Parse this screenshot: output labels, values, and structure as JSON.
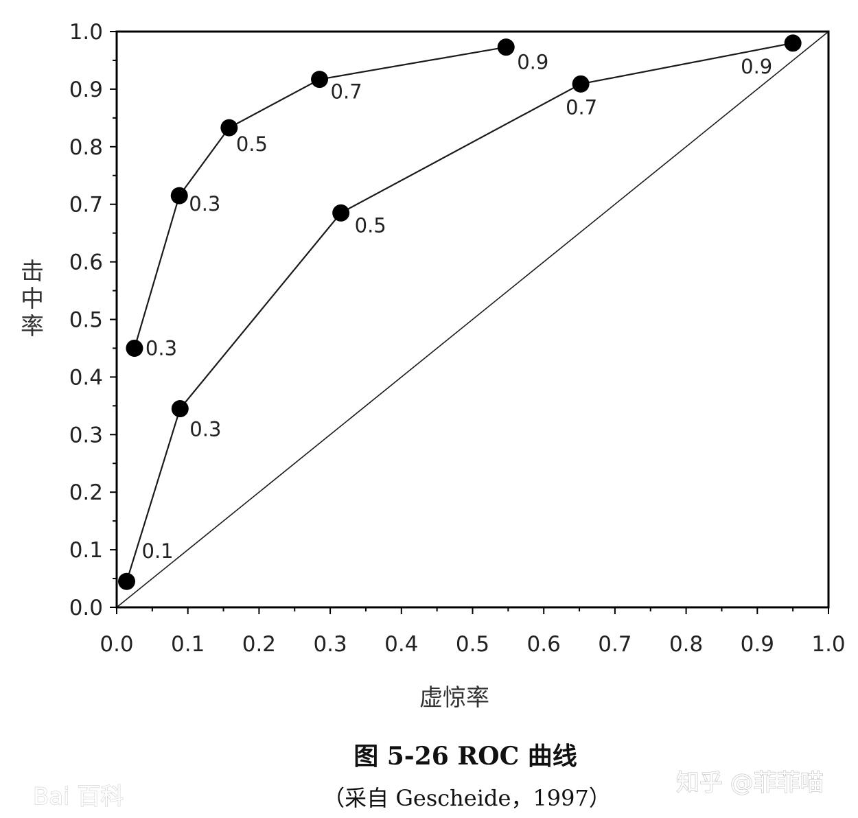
{
  "chart_data": {
    "type": "line",
    "xlabel": "虚惊率",
    "ylabel": "击中率",
    "xlim": [
      0,
      1
    ],
    "ylim": [
      0,
      1
    ],
    "x_ticks": [
      "0.0",
      "0.1",
      "0.2",
      "0.3",
      "0.4",
      "0.5",
      "0.6",
      "0.7",
      "0.8",
      "0.9",
      "1.0"
    ],
    "y_ticks": [
      "0.0",
      "0.1",
      "0.2",
      "0.3",
      "0.4",
      "0.5",
      "0.6",
      "0.7",
      "0.8",
      "0.9",
      "1.0"
    ],
    "grid": false,
    "legend": "none",
    "series": [
      {
        "points": [
          {
            "x": 0.025,
            "y": 0.45,
            "label": "0.3"
          },
          {
            "x": 0.088,
            "y": 0.715,
            "label": "0.3"
          },
          {
            "x": 0.158,
            "y": 0.833,
            "label": "0.5"
          },
          {
            "x": 0.285,
            "y": 0.917,
            "label": "0.7"
          },
          {
            "x": 0.547,
            "y": 0.973,
            "label": "0.9"
          }
        ]
      },
      {
        "points": [
          {
            "x": 0.014,
            "y": 0.045,
            "label": "0.1"
          },
          {
            "x": 0.089,
            "y": 0.345,
            "label": "0.3"
          },
          {
            "x": 0.315,
            "y": 0.685,
            "label": "0.5"
          },
          {
            "x": 0.652,
            "y": 0.909,
            "label": "0.7"
          },
          {
            "x": 0.95,
            "y": 0.98,
            "label": "0.9"
          }
        ]
      }
    ],
    "reference_line": {
      "x": [
        0,
        1
      ],
      "y": [
        0,
        1
      ]
    }
  },
  "figure": {
    "title": "图 5-26 ROC 曲线",
    "source": "（采自 Gescheide，1997）"
  },
  "watermarks": {
    "left": "Bai 百科",
    "right": "知乎 @菲菲喵"
  },
  "colors": {
    "line": "#1a1a1a",
    "marker": "#000000",
    "axis": "#000000"
  }
}
